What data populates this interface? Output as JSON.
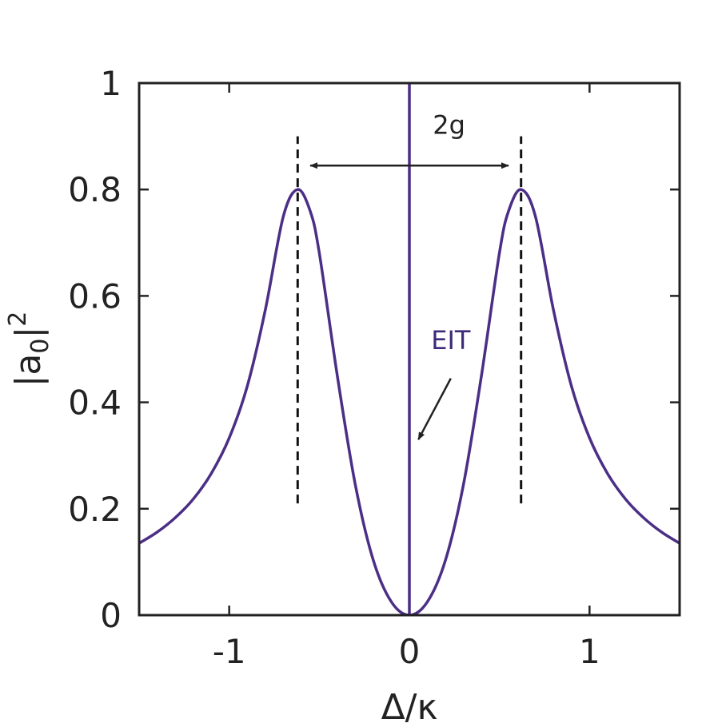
{
  "chart_data": {
    "type": "line",
    "xlabel": "Δ/κ",
    "ylabel": "|a",
    "ylabel_sub": "0",
    "ylabel_tail": "|",
    "ylabel_sup": "2",
    "xlim": [
      -1.5,
      1.5
    ],
    "ylim": [
      0,
      1
    ],
    "x_ticks": [
      -1,
      0,
      1
    ],
    "x_tick_labels": [
      "-1",
      "0",
      "1"
    ],
    "y_ticks": [
      0,
      0.2,
      0.4,
      0.6,
      0.8,
      1
    ],
    "y_tick_labels": [
      "0",
      "0.2",
      "0.4",
      "0.6",
      "0.8",
      "1"
    ],
    "grid": false,
    "colors": {
      "curve": "#4b2f86",
      "eit_text": "#3d2a7a",
      "axis": "#222222"
    },
    "series": [
      {
        "x": [
          -1.5,
          -1.4,
          -1.3,
          -1.2,
          -1.1,
          -1.0,
          -0.9,
          -0.8,
          -0.7,
          -0.62,
          -0.55,
          -0.5,
          -0.4,
          -0.3,
          -0.2,
          -0.1,
          0.0,
          0.1,
          0.2,
          0.3,
          0.4,
          0.5,
          0.55,
          0.62,
          0.7,
          0.8,
          0.9,
          1.0,
          1.1,
          1.2,
          1.3,
          1.4,
          1.5
        ],
        "y": [
          0.135,
          0.156,
          0.183,
          0.218,
          0.266,
          0.333,
          0.43,
          0.573,
          0.749,
          0.8,
          0.759,
          0.681,
          0.45,
          0.245,
          0.103,
          0.025,
          0.0,
          0.025,
          0.103,
          0.245,
          0.45,
          0.681,
          0.759,
          0.8,
          0.749,
          0.573,
          0.43,
          0.333,
          0.266,
          0.218,
          0.183,
          0.156,
          0.135
        ]
      }
    ],
    "eit_line": {
      "x": 0,
      "y_from": 0,
      "y_to": 1
    },
    "peak_markers": {
      "x": [
        -0.62,
        0.62
      ],
      "y_from": 0.21,
      "y_to": 0.9
    },
    "annotations": {
      "splitting_label": "2g",
      "splitting_arrow": {
        "x_from": -0.55,
        "x_to": 0.55,
        "y": 0.845
      },
      "eit_label": "EIT",
      "eit_label_pos": {
        "x": 0.23,
        "y": 0.5
      },
      "eit_arrow": {
        "x_from": 0.23,
        "y_from": 0.445,
        "x_to": 0.05,
        "y_to": 0.33
      },
      "splitting_label_pos": {
        "x": 0.22,
        "y": 0.905
      }
    }
  }
}
